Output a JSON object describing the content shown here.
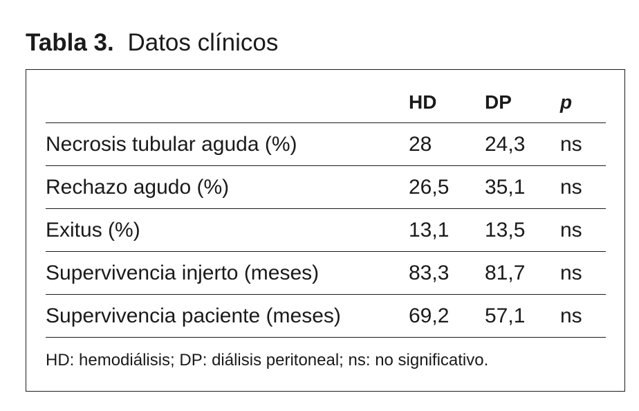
{
  "title": {
    "label": "Tabla 3.",
    "caption": "Datos clínicos"
  },
  "table": {
    "headers": [
      "",
      "HD",
      "DP",
      "p"
    ],
    "rows": [
      {
        "label": "Necrosis tubular aguda (%)",
        "hd": "28",
        "dp": "24,3",
        "p": "ns"
      },
      {
        "label": "Rechazo agudo (%)",
        "hd": "26,5",
        "dp": "35,1",
        "p": "ns"
      },
      {
        "label": "Exitus (%)",
        "hd": "13,1",
        "dp": "13,5",
        "p": "ns"
      },
      {
        "label": "Supervivencia injerto (meses)",
        "hd": "83,3",
        "dp": "81,7",
        "p": "ns"
      },
      {
        "label": "Supervivencia paciente (meses)",
        "hd": "69,2",
        "dp": "57,1",
        "p": "ns"
      }
    ]
  },
  "footnote": "HD: hemodiálisis; DP: diálisis peritoneal; ns: no significativo."
}
